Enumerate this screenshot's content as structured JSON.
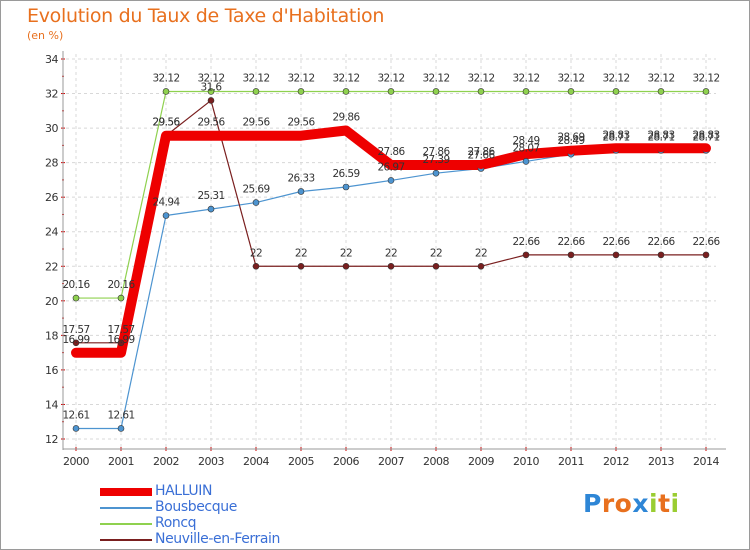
{
  "title": "Evolution du Taux de Taxe d'Habitation",
  "subtitle": "(en %)",
  "logo_text": "Proxiti",
  "chart_data": {
    "type": "line",
    "title": "Evolution du Taux de Taxe d'Habitation",
    "ylabel": "(en %)",
    "xlabel": "",
    "ylim": [
      12,
      34
    ],
    "yticks": [
      12,
      14,
      16,
      18,
      20,
      22,
      24,
      26,
      28,
      30,
      32,
      34
    ],
    "grid": true,
    "legend_position": "bottom-left",
    "categories": [
      "2000",
      "2001",
      "2002",
      "2003",
      "2004",
      "2005",
      "2006",
      "2007",
      "2008",
      "2009",
      "2010",
      "2011",
      "2012",
      "2013",
      "2014"
    ],
    "series": [
      {
        "name": "HALLUIN",
        "color": "#ee0000",
        "values": [
          16.99,
          16.99,
          29.56,
          29.56,
          29.56,
          29.56,
          29.86,
          27.86,
          27.86,
          27.86,
          28.49,
          28.69,
          28.83,
          28.83,
          28.83
        ],
        "labels": [
          "16.99",
          "16.99",
          "29.56",
          "29.56",
          "29.56",
          "29.56",
          "29.86",
          "27.86",
          "27.86",
          "27.86",
          "28.49",
          "28.69",
          "28.83",
          "28.83",
          "28.83"
        ]
      },
      {
        "name": "Bousbecque",
        "color": "#4d94d0",
        "values": [
          12.61,
          12.61,
          24.94,
          25.31,
          25.69,
          26.33,
          26.59,
          26.97,
          27.39,
          27.66,
          28.07,
          28.49,
          28.71,
          28.71,
          28.71
        ],
        "labels": [
          "12.61",
          "12.61",
          "24.94",
          "25.31",
          "25.69",
          "26.33",
          "26.59",
          "26.97",
          "27.39",
          "27.66",
          "28.07",
          "28.49",
          "28.71",
          "28.71",
          "28.71"
        ]
      },
      {
        "name": "Roncq",
        "color": "#8fd14f",
        "values": [
          20.16,
          20.16,
          32.12,
          32.12,
          32.12,
          32.12,
          32.12,
          32.12,
          32.12,
          32.12,
          32.12,
          32.12,
          32.12,
          32.12,
          32.12
        ],
        "labels": [
          "20.16",
          "20.16",
          "32.12",
          "32.12",
          "32.12",
          "32.12",
          "32.12",
          "32.12",
          "32.12",
          "32.12",
          "32.12",
          "32.12",
          "32.12",
          "32.12",
          "32.12"
        ]
      },
      {
        "name": "Neuville-en-Ferrain",
        "color": "#7a1f1f",
        "values": [
          17.57,
          17.57,
          29.56,
          31.6,
          22,
          22,
          22,
          22,
          22,
          22,
          22.66,
          22.66,
          22.66,
          22.66,
          22.66
        ],
        "labels": [
          "17.57",
          "17.57",
          "29.56",
          "31.6",
          "22",
          "22",
          "22",
          "22",
          "22",
          "22",
          "22.66",
          "22.66",
          "22.66",
          "22.66",
          "22.66"
        ]
      }
    ]
  }
}
